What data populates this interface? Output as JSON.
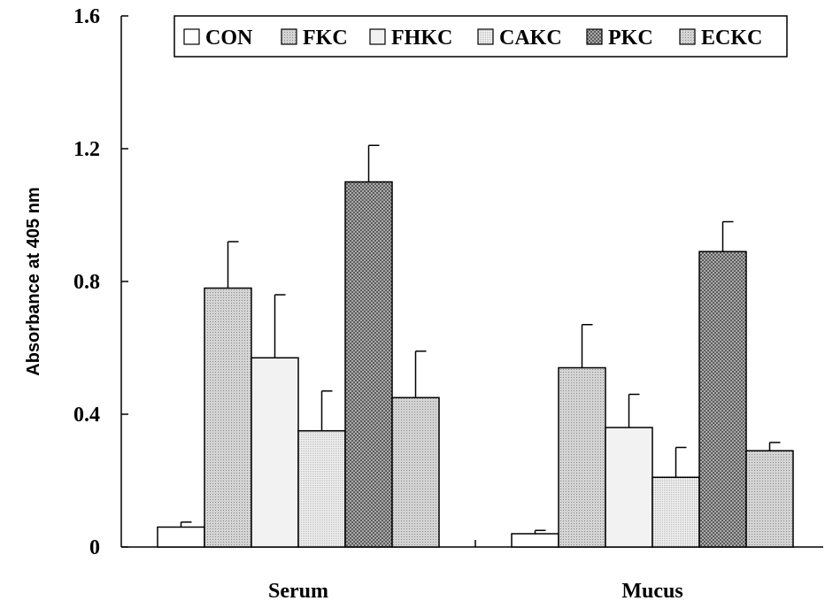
{
  "chart_data": {
    "type": "bar",
    "title": "",
    "xlabel": "",
    "ylabel": "Absorbance at 405 nm",
    "ylim": [
      0,
      1.6
    ],
    "yticks": [
      {
        "value": 0,
        "label": "0"
      },
      {
        "value": 0.4,
        "label": "0.4"
      },
      {
        "value": 0.8,
        "label": "0.8"
      },
      {
        "value": 1.2,
        "label": "1.2"
      },
      {
        "value": 1.6,
        "label": "1.6"
      }
    ],
    "categories": [
      "Serum",
      "Mucus"
    ],
    "legend_position": "top",
    "series": [
      {
        "name": "CON",
        "values": [
          0.06,
          0.04
        ],
        "errors": [
          0.015,
          0.01
        ],
        "fill": "#ffffff",
        "pattern": "none"
      },
      {
        "name": "FKC",
        "values": [
          0.78,
          0.54
        ],
        "errors": [
          0.14,
          0.13
        ],
        "fill": "#d0d0d0",
        "pattern": "dots"
      },
      {
        "name": "FHKC",
        "values": [
          0.57,
          0.36
        ],
        "errors": [
          0.19,
          0.1
        ],
        "fill": "#f2f2f2",
        "pattern": "none"
      },
      {
        "name": "CAKC",
        "values": [
          0.35,
          0.21
        ],
        "errors": [
          0.12,
          0.09
        ],
        "fill": "#ececec",
        "pattern": "fine"
      },
      {
        "name": "PKC",
        "values": [
          1.1,
          0.89
        ],
        "errors": [
          0.11,
          0.09
        ],
        "fill": "#a8a8a8",
        "pattern": "cross"
      },
      {
        "name": "ECKC",
        "values": [
          0.45,
          0.29
        ],
        "errors": [
          0.14,
          0.025
        ],
        "fill": "#c8c8c8",
        "pattern": "dots"
      }
    ],
    "grid": false
  }
}
